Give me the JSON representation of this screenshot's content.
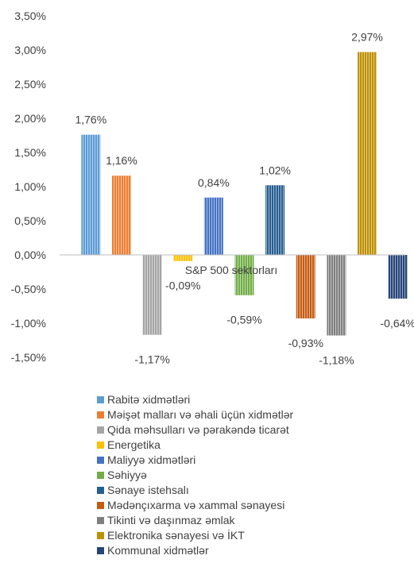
{
  "chart_data": {
    "type": "bar",
    "title": "",
    "xlabel": "S&P 500 sektorları",
    "ylabel": "",
    "ylim": [
      -1.5,
      3.5
    ],
    "ytick_step": 0.5,
    "y_tick_labels": [
      "3,50%",
      "3,00%",
      "2,50%",
      "2,00%",
      "1,50%",
      "1,00%",
      "0,50%",
      "0,00%",
      "-0,50%",
      "-1,00%",
      "-1,50%"
    ],
    "grid": false,
    "legend_position": "bottom",
    "series": [
      {
        "name": "Rabitə xidmətləri",
        "value": 1.76,
        "label": "1,76%",
        "color": "#5b9bd5"
      },
      {
        "name": "Məişət malları və əhali üçün xidmətlər",
        "value": 1.16,
        "label": "1,16%",
        "color": "#ed7d31"
      },
      {
        "name": "Qida məhsulları və pərakəndə ticarət",
        "value": -1.17,
        "label": "-1,17%",
        "color": "#a5a5a5"
      },
      {
        "name": "Energetika",
        "value": -0.09,
        "label": "-0,09%",
        "color": "#ffc000"
      },
      {
        "name": "Maliyyə xidmətləri",
        "value": 0.84,
        "label": "0,84%",
        "color": "#4472c4"
      },
      {
        "name": "Səhiyyə",
        "value": -0.59,
        "label": "-0,59%",
        "color": "#70ad47"
      },
      {
        "name": "Sənaye istehsalı",
        "value": 1.02,
        "label": "1,02%",
        "color": "#255e91"
      },
      {
        "name": "Mədənçıxarma və xammal sənayesi",
        "value": -0.93,
        "label": "-0,93%",
        "color": "#c55a11"
      },
      {
        "name": "Tikinti və daşınmaz əmlak",
        "value": -1.18,
        "label": "-1,18%",
        "color": "#7f7f7f"
      },
      {
        "name": "Elektronika sənayesi və İKT",
        "value": 2.97,
        "label": "2,97%",
        "color": "#bf9000"
      },
      {
        "name": "Kommunal xidmətlər",
        "value": -0.64,
        "label": "-0,64%",
        "color": "#264478"
      }
    ]
  }
}
